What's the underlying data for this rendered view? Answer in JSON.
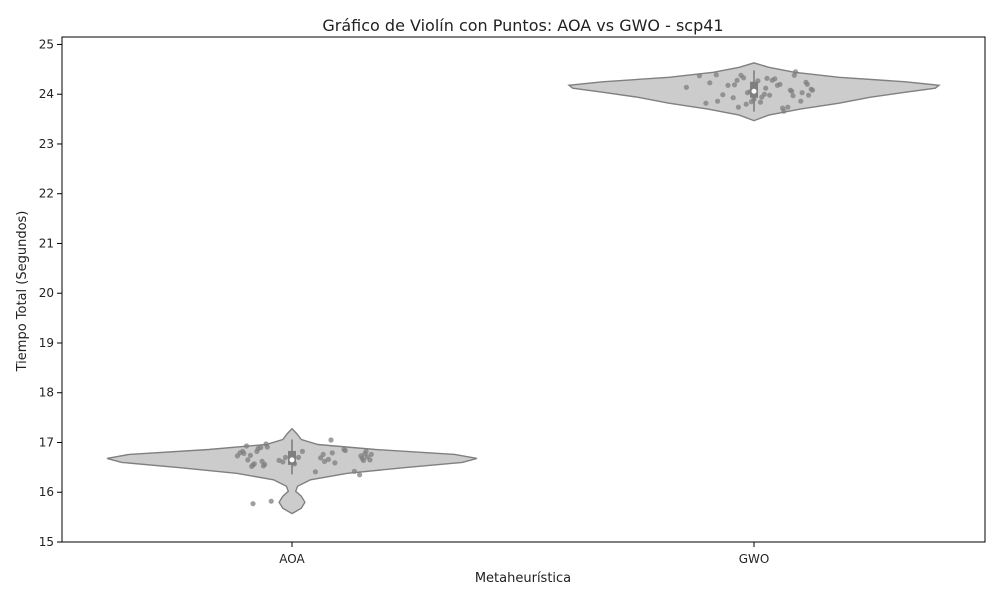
{
  "chart_data": {
    "type": "violin",
    "title": "Gráfico de Violín con Puntos: AOA vs GWO - scp41",
    "xlabel": "Metaheurística",
    "ylabel": "Tiempo Total (Segundos)",
    "categories": [
      "AOA",
      "GWO"
    ],
    "ylim": [
      15,
      25.15
    ],
    "yticks": [
      15,
      16,
      17,
      18,
      19,
      20,
      21,
      22,
      23,
      24,
      25
    ],
    "grid": false,
    "legend": "none",
    "colors": {
      "violin_fill": "#cccccc",
      "violin_edge": "#808080",
      "points": "#7f7f7f",
      "box": "#7f7f7f"
    },
    "series": [
      {
        "category": "AOA",
        "min": 15.57,
        "max": 17.28,
        "q1": 16.55,
        "median": 16.65,
        "q3": 16.83,
        "whisker_low": 16.36,
        "whisker_high": 17.06,
        "density": [
          [
            15.57,
            0
          ],
          [
            15.68,
            0.05
          ],
          [
            15.8,
            0.07
          ],
          [
            15.92,
            0.05
          ],
          [
            16.02,
            0.02
          ],
          [
            16.12,
            0.03
          ],
          [
            16.25,
            0.1
          ],
          [
            16.38,
            0.3
          ],
          [
            16.5,
            0.62
          ],
          [
            16.6,
            0.92
          ],
          [
            16.68,
            1.0
          ],
          [
            16.76,
            0.88
          ],
          [
            16.86,
            0.45
          ],
          [
            16.96,
            0.14
          ],
          [
            17.06,
            0.05
          ],
          [
            17.18,
            0.025
          ],
          [
            17.28,
            0
          ]
        ],
        "points": [
          {
            "j": -0.42,
            "y": 16.73
          },
          {
            "j": -0.4,
            "y": 16.79
          },
          {
            "j": -0.38,
            "y": 16.82
          },
          {
            "j": -0.37,
            "y": 16.78
          },
          {
            "j": -0.35,
            "y": 16.93
          },
          {
            "j": -0.34,
            "y": 16.65
          },
          {
            "j": -0.32,
            "y": 16.74
          },
          {
            "j": -0.31,
            "y": 16.52
          },
          {
            "j": -0.3,
            "y": 16.55
          },
          {
            "j": -0.29,
            "y": 16.57
          },
          {
            "j": -0.27,
            "y": 16.82
          },
          {
            "j": -0.26,
            "y": 16.88
          },
          {
            "j": -0.24,
            "y": 16.9
          },
          {
            "j": -0.23,
            "y": 16.62
          },
          {
            "j": -0.22,
            "y": 16.53
          },
          {
            "j": -0.21,
            "y": 16.56
          },
          {
            "j": -0.2,
            "y": 16.97
          },
          {
            "j": -0.19,
            "y": 16.91
          },
          {
            "j": -0.1,
            "y": 16.64
          },
          {
            "j": -0.07,
            "y": 16.61
          },
          {
            "j": -0.05,
            "y": 16.7
          },
          {
            "j": 0.02,
            "y": 16.57
          },
          {
            "j": 0.05,
            "y": 16.7
          },
          {
            "j": 0.08,
            "y": 16.82
          },
          {
            "j": 0.18,
            "y": 16.41
          },
          {
            "j": 0.22,
            "y": 16.69
          },
          {
            "j": 0.24,
            "y": 16.76
          },
          {
            "j": 0.25,
            "y": 16.62
          },
          {
            "j": 0.28,
            "y": 16.66
          },
          {
            "j": 0.31,
            "y": 16.79
          },
          {
            "j": 0.3,
            "y": 17.05
          },
          {
            "j": 0.33,
            "y": 16.59
          },
          {
            "j": 0.4,
            "y": 16.86
          },
          {
            "j": 0.41,
            "y": 16.84
          },
          {
            "j": 0.48,
            "y": 16.42
          },
          {
            "j": 0.52,
            "y": 16.35
          },
          {
            "j": 0.53,
            "y": 16.73
          },
          {
            "j": 0.54,
            "y": 16.68
          },
          {
            "j": 0.55,
            "y": 16.64
          },
          {
            "j": 0.56,
            "y": 16.77
          },
          {
            "j": 0.57,
            "y": 16.82
          },
          {
            "j": 0.58,
            "y": 16.71
          },
          {
            "j": 0.6,
            "y": 16.65
          },
          {
            "j": 0.61,
            "y": 16.76
          },
          {
            "j": -0.3,
            "y": 15.77
          },
          {
            "j": -0.16,
            "y": 15.82
          }
        ]
      },
      {
        "category": "GWO",
        "min": 23.47,
        "max": 24.63,
        "q1": 23.93,
        "median": 24.06,
        "q3": 24.25,
        "whisker_low": 23.65,
        "whisker_high": 24.48,
        "density": [
          [
            23.47,
            0
          ],
          [
            23.58,
            0.08
          ],
          [
            23.7,
            0.25
          ],
          [
            23.82,
            0.46
          ],
          [
            23.94,
            0.63
          ],
          [
            24.04,
            0.82
          ],
          [
            24.12,
            0.98
          ],
          [
            24.18,
            1.0
          ],
          [
            24.25,
            0.82
          ],
          [
            24.34,
            0.46
          ],
          [
            24.44,
            0.22
          ],
          [
            24.54,
            0.08
          ],
          [
            24.63,
            0
          ]
        ],
        "points": [
          {
            "j": -0.52,
            "y": 24.14
          },
          {
            "j": -0.42,
            "y": 24.37
          },
          {
            "j": -0.37,
            "y": 23.82
          },
          {
            "j": -0.34,
            "y": 24.23
          },
          {
            "j": -0.29,
            "y": 24.39
          },
          {
            "j": -0.28,
            "y": 23.86
          },
          {
            "j": -0.24,
            "y": 23.99
          },
          {
            "j": -0.2,
            "y": 24.18
          },
          {
            "j": -0.16,
            "y": 23.93
          },
          {
            "j": -0.15,
            "y": 24.19
          },
          {
            "j": -0.13,
            "y": 24.28
          },
          {
            "j": -0.12,
            "y": 23.74
          },
          {
            "j": -0.1,
            "y": 24.38
          },
          {
            "j": -0.08,
            "y": 24.33
          },
          {
            "j": -0.06,
            "y": 23.8
          },
          {
            "j": -0.05,
            "y": 24.03
          },
          {
            "j": -0.03,
            "y": 24.05
          },
          {
            "j": -0.02,
            "y": 23.85
          },
          {
            "j": 0.0,
            "y": 23.9
          },
          {
            "j": 0.03,
            "y": 24.27
          },
          {
            "j": 0.05,
            "y": 23.84
          },
          {
            "j": 0.06,
            "y": 23.94
          },
          {
            "j": 0.08,
            "y": 24.0
          },
          {
            "j": 0.09,
            "y": 24.12
          },
          {
            "j": 0.1,
            "y": 24.32
          },
          {
            "j": 0.12,
            "y": 23.98
          },
          {
            "j": 0.14,
            "y": 24.28
          },
          {
            "j": 0.16,
            "y": 24.31
          },
          {
            "j": 0.18,
            "y": 24.18
          },
          {
            "j": 0.2,
            "y": 24.2
          },
          {
            "j": 0.22,
            "y": 23.72
          },
          {
            "j": 0.23,
            "y": 23.66
          },
          {
            "j": 0.26,
            "y": 23.74
          },
          {
            "j": 0.28,
            "y": 24.08
          },
          {
            "j": 0.29,
            "y": 24.06
          },
          {
            "j": 0.3,
            "y": 23.97
          },
          {
            "j": 0.31,
            "y": 24.38
          },
          {
            "j": 0.32,
            "y": 24.45
          },
          {
            "j": 0.36,
            "y": 23.86
          },
          {
            "j": 0.37,
            "y": 24.03
          },
          {
            "j": 0.4,
            "y": 24.24
          },
          {
            "j": 0.41,
            "y": 24.2
          },
          {
            "j": 0.42,
            "y": 23.98
          },
          {
            "j": 0.44,
            "y": 24.1
          },
          {
            "j": 0.45,
            "y": 24.08
          }
        ]
      }
    ]
  }
}
